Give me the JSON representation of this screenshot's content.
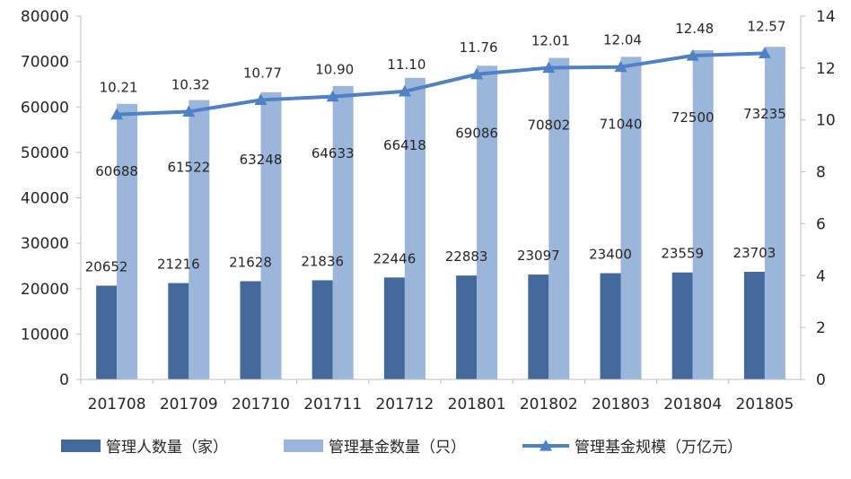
{
  "chart_data": {
    "type": "bar",
    "categories": [
      "201708",
      "201709",
      "201710",
      "201711",
      "201712",
      "201801",
      "201802",
      "201803",
      "201804",
      "201805"
    ],
    "series": [
      {
        "name": "管理人数量（家）",
        "type": "bar",
        "axis": "left",
        "color": "#43699c",
        "values": [
          20652,
          21216,
          21628,
          21836,
          22446,
          22883,
          23097,
          23400,
          23559,
          23703
        ]
      },
      {
        "name": "管理基金数量（只）",
        "type": "bar",
        "axis": "left",
        "color": "#9cb6db",
        "values": [
          60688,
          61522,
          63248,
          64633,
          66418,
          69086,
          70802,
          71040,
          72500,
          73235
        ]
      },
      {
        "name": "管理基金规模（万亿元）",
        "type": "line",
        "marker": "triangle",
        "axis": "right",
        "color": "#4f81c7",
        "values": [
          10.21,
          10.32,
          10.77,
          10.9,
          11.1,
          11.76,
          12.01,
          12.04,
          12.48,
          12.57
        ],
        "labels": [
          "10.21",
          "10.32",
          "10.77",
          "10.90",
          "11.10",
          "11.76",
          "12.01",
          "12.04",
          "12.48",
          "12.57"
        ]
      }
    ],
    "ylim": [
      0,
      80000
    ],
    "yticks": [
      "0",
      "10000",
      "20000",
      "30000",
      "40000",
      "50000",
      "60000",
      "70000",
      "80000"
    ],
    "y2lim": [
      0,
      14
    ],
    "y2ticks": [
      "0",
      "2",
      "4",
      "6",
      "8",
      "10",
      "12",
      "14"
    ],
    "grid": false,
    "legend_position": "bottom"
  }
}
